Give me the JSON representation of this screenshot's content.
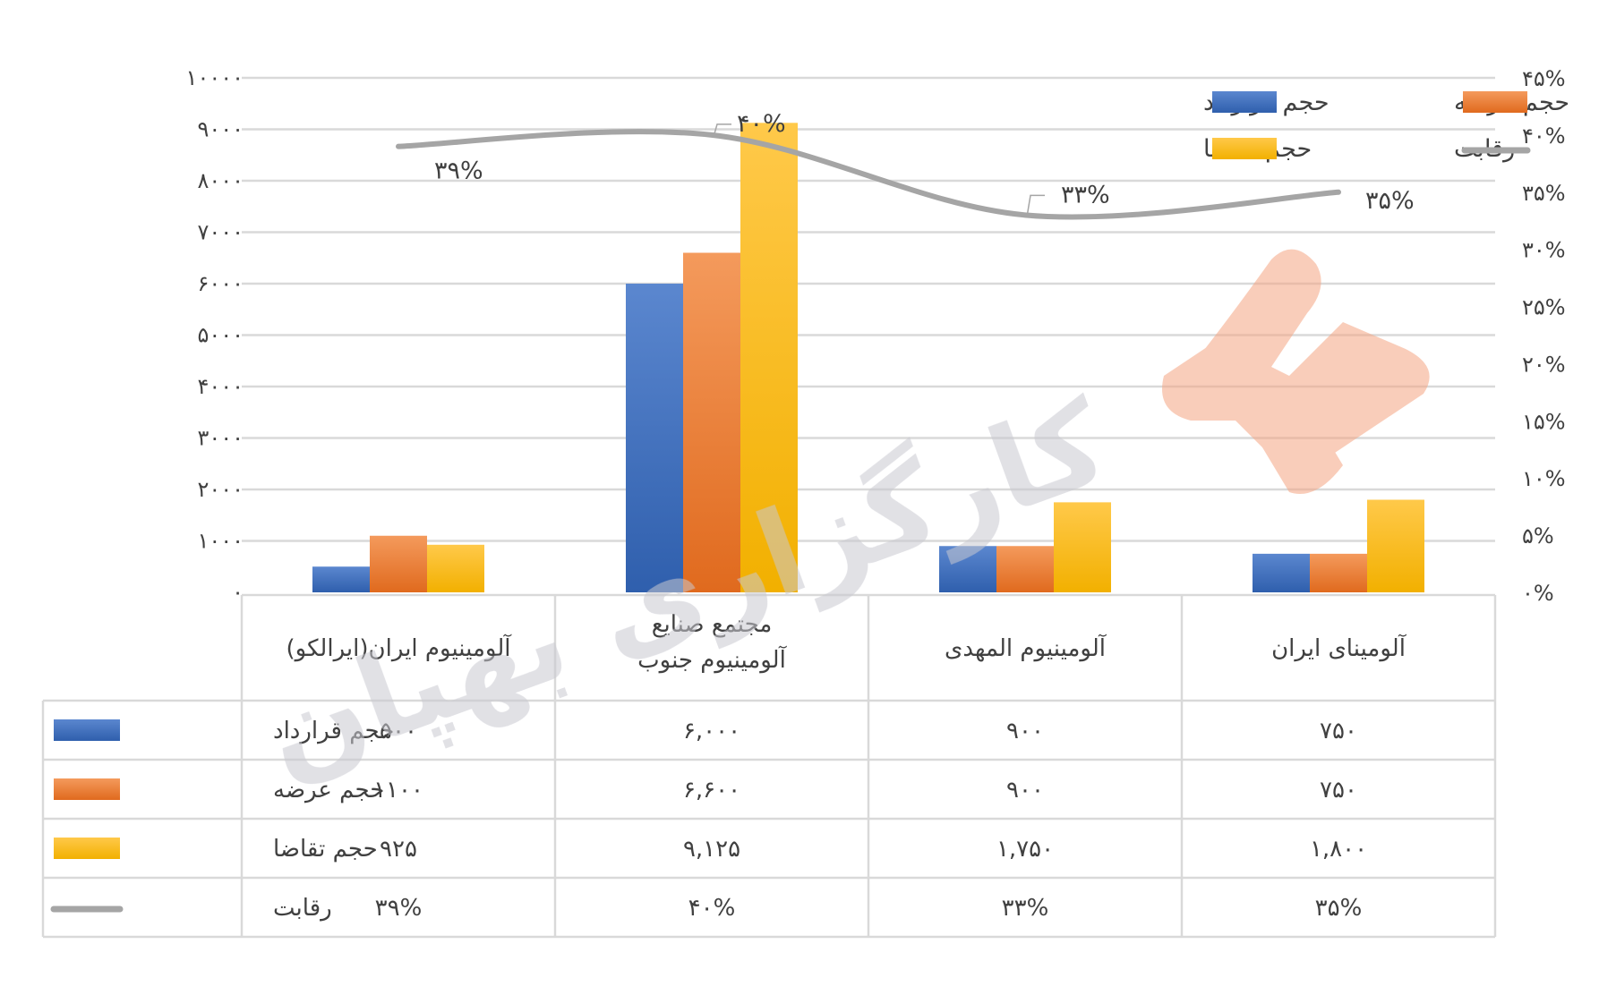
{
  "chart_data": {
    "type": "bar",
    "categories": [
      "آلومینیوم ایران(ایرالکو)",
      "مجتمع صنایع آلومینیوم جنوب",
      "آلومینیوم المهدی",
      "آلومینای ایران"
    ],
    "category_lines": [
      [
        "آلومینیوم ایران(ایرالکو)"
      ],
      [
        "مجتمع صنایع",
        "آلومینیوم جنوب"
      ],
      [
        "آلومینیوم المهدی"
      ],
      [
        "آلومینای ایران"
      ]
    ],
    "series": [
      {
        "name": "حجم قرارداد",
        "type": "bar",
        "axis": "left",
        "color": "#4472C4",
        "values": [
          500,
          6000,
          900,
          750
        ],
        "table_labels": [
          "۵۰۰",
          "۶,۰۰۰",
          "۹۰۰",
          "۷۵۰"
        ]
      },
      {
        "name": "حجم عرضه",
        "type": "bar",
        "axis": "left",
        "color": "#ED7D31",
        "values": [
          1100,
          6600,
          900,
          750
        ],
        "table_labels": [
          "۱۱۰۰",
          "۶,۶۰۰",
          "۹۰۰",
          "۷۵۰"
        ]
      },
      {
        "name": "حجم تقاضا",
        "type": "bar",
        "axis": "left",
        "color": "#FFC000",
        "values": [
          925,
          9125,
          1750,
          1800
        ],
        "table_labels": [
          "۹۲۵",
          "۹,۱۲۵",
          "۱,۷۵۰",
          "۱,۸۰۰"
        ]
      },
      {
        "name": "رقابت",
        "type": "line",
        "axis": "right",
        "color": "#A5A5A5",
        "values": [
          39,
          40,
          33,
          35
        ],
        "table_labels": [
          "۳۹%",
          "۴۰%",
          "۳۳%",
          "۳۵%"
        ],
        "point_labels": [
          "۳۹%",
          "۴۰%",
          "۳۳%",
          "۳۵%"
        ]
      }
    ],
    "y_left": {
      "min": 0,
      "max": 10000,
      "ticks": [
        "۰",
        "۱۰۰۰",
        "۲۰۰۰",
        "۳۰۰۰",
        "۴۰۰۰",
        "۵۰۰۰",
        "۶۰۰۰",
        "۷۰۰۰",
        "۸۰۰۰",
        "۹۰۰۰",
        "۱۰۰۰۰"
      ]
    },
    "y_right": {
      "min": 0,
      "max": 45,
      "ticks": [
        "۰%",
        "۵%",
        "۱۰%",
        "۱۵%",
        "۲۰%",
        "۲۵%",
        "۳۰%",
        "۳۵%",
        "۴۰%",
        "۴۵%"
      ]
    },
    "legend_position": "top-right",
    "grid": true,
    "data_table": true
  },
  "watermark": {
    "text": "کارگزاری بهپان",
    "logo_color": "#F4A582",
    "text_color": "#C8C8D0"
  }
}
